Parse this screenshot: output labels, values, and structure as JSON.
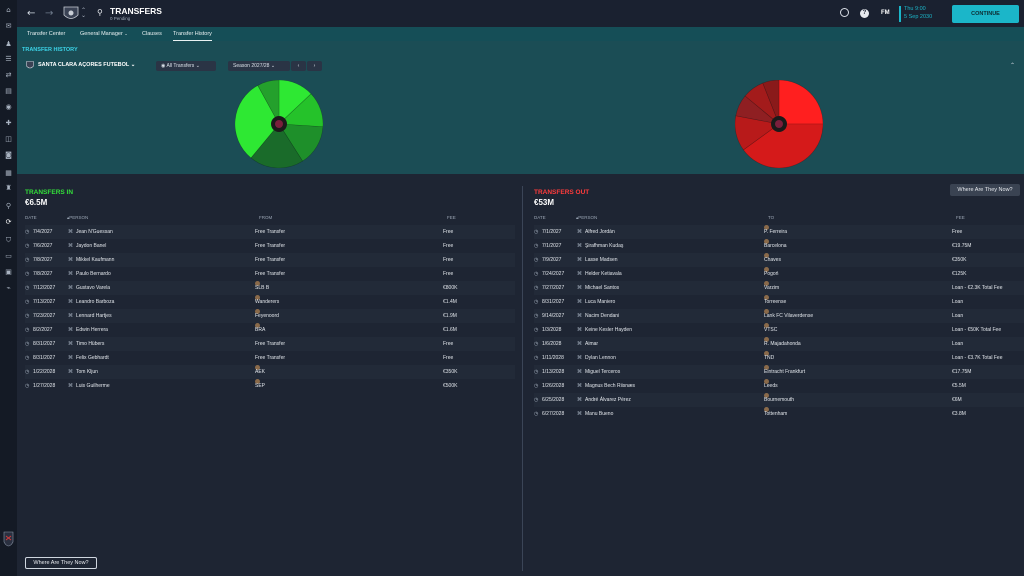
{
  "header": {
    "title": "TRANSFERS",
    "subtitle": "0 Pending",
    "date_line1": "Thu 9:00",
    "date_line2": "5 Sep 2030",
    "fm_label": "FM",
    "continue_label": "CONTINUE"
  },
  "tabs": [
    "Transfer Center",
    "General Manager",
    "Clauses",
    "Transfer History"
  ],
  "section_title": "TRANSFER HISTORY",
  "filters": {
    "club": "SANTA CLARA AÇORES FUTEBOL",
    "type": "All Transfers",
    "season": "Season 2027/28"
  },
  "colors": {
    "in_accent": "#33e03a",
    "out_accent": "#ff3b3b",
    "continue_bg": "#1bb6c9"
  },
  "chart_data": [
    {
      "type": "pie",
      "slices": [
        13,
        13,
        15,
        20,
        31,
        8
      ]
    },
    {
      "type": "pie",
      "slices": [
        25,
        40,
        13,
        8,
        8,
        6
      ]
    }
  ],
  "transfers_in": {
    "title": "TRANSFERS IN",
    "amount": "€6.5M",
    "columns": [
      "DATE",
      "PERSON",
      "FROM",
      "FEE"
    ],
    "rows": [
      [
        "7/4/2027",
        "Jean N'Guessan",
        "Free Transfer",
        "Free"
      ],
      [
        "7/6/2027",
        "Jaydon Banel",
        "Free Transfer",
        "Free"
      ],
      [
        "7/8/2027",
        "Mikkel Kaufmann",
        "Free Transfer",
        "Free"
      ],
      [
        "7/8/2027",
        "Paulo Bernardo",
        "Free Transfer",
        "Free"
      ],
      [
        "7/12/2027",
        "Gustavo Varela",
        "SLB B",
        "€800K"
      ],
      [
        "7/13/2027",
        "Leandro Barboza",
        "Wanderers",
        "€1.4M"
      ],
      [
        "7/23/2027",
        "Lennard Hartjes",
        "Feyenoord",
        "€1.9M"
      ],
      [
        "8/2/2027",
        "Edwin Herrera",
        "BRA",
        "€1.6M"
      ],
      [
        "8/31/2027",
        "Timo Hübers",
        "Free Transfer",
        "Free"
      ],
      [
        "8/31/2027",
        "Felix Gebhardt",
        "Free Transfer",
        "Free"
      ],
      [
        "1/22/2028",
        "Tom Kljun",
        "AEK",
        "€350K"
      ],
      [
        "1/27/2028",
        "Luis Guilherme",
        "SEP",
        "€500K"
      ]
    ]
  },
  "transfers_out": {
    "title": "TRANSFERS OUT",
    "amount": "€53M",
    "where_label": "Where Are They Now?",
    "columns": [
      "DATE",
      "PERSON",
      "TO",
      "FEE"
    ],
    "rows": [
      [
        "7/1/2027",
        "Alfred Jordán",
        "P. Ferreira",
        "Free"
      ],
      [
        "7/1/2027",
        "Şirafhman Kudaş",
        "Barcelona",
        "€19.75M"
      ],
      [
        "7/9/2027",
        "Lasse Madsen",
        "Chaves",
        "€350K"
      ],
      [
        "7/24/2027",
        "Helder Ketiavala",
        "Pogoń",
        "€125K"
      ],
      [
        "7/27/2027",
        "Michael Santos",
        "Varzim",
        "Loan - €2.3K Total Fee"
      ],
      [
        "8/31/2027",
        "Luca Maniero",
        "Torreense",
        "Loan"
      ],
      [
        "9/14/2027",
        "Nacim Dendani",
        "Lank FC Vilaverdense",
        "Loan"
      ],
      [
        "1/3/2028",
        "Keine Kesler Hayden",
        "VTSC",
        "Loan - €50K Total Fee"
      ],
      [
        "1/6/2028",
        "Aimar",
        "R. Majadahonda",
        "Loan"
      ],
      [
        "1/11/2028",
        "Dylan Lennon",
        "TND",
        "Loan - €3.7K Total Fee"
      ],
      [
        "1/13/2028",
        "Miguel Terceros",
        "Eintracht Frankfurt",
        "€17.75M"
      ],
      [
        "1/26/2028",
        "Magnus Bech Riisnæs",
        "Leeds",
        "€5.5M"
      ],
      [
        "6/25/2028",
        "André Álvarez Pérez",
        "Bournemouth",
        "€6M"
      ],
      [
        "6/27/2028",
        "Manu Bueno",
        "Tottenham",
        "€3.8M"
      ]
    ]
  },
  "bottom_button": "Where Are They Now?"
}
